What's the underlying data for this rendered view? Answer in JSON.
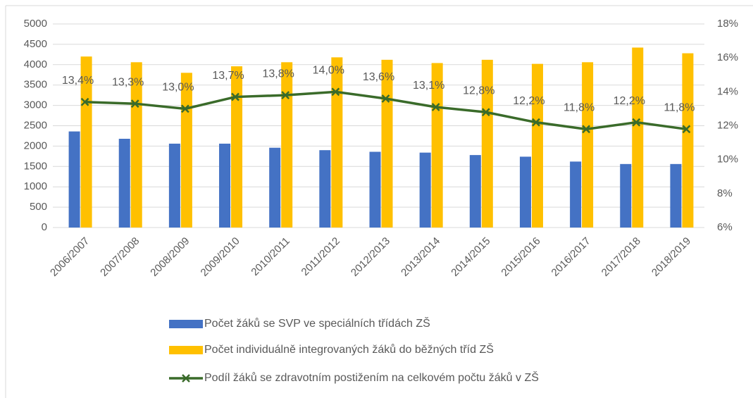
{
  "chart_data": {
    "type": "bar",
    "categories": [
      "2006/2007",
      "2007/2008",
      "2008/2009",
      "2009/2010",
      "2010/2011",
      "2011/2012",
      "2012/2013",
      "2013/2014",
      "2014/2015",
      "2015/2016",
      "2016/2017",
      "2017/2018",
      "2018/2019"
    ],
    "series": [
      {
        "name": "Počet žáků se SVP ve speciálních třídách ZŠ",
        "color": "#4472c4",
        "type": "bar",
        "values": [
          2360,
          2180,
          2060,
          2060,
          1960,
          1900,
          1860,
          1840,
          1780,
          1740,
          1620,
          1560,
          1560
        ]
      },
      {
        "name": "Počet individuálně integrovaných žáků do běžných tříd ZŠ",
        "color": "#ffc000",
        "type": "bar",
        "values": [
          4200,
          4060,
          3800,
          3960,
          4060,
          4180,
          4120,
          4040,
          4120,
          4020,
          4060,
          4420,
          4280
        ]
      },
      {
        "name": "Podíl žáků se zdravotním postižením na celkovém počtu žáků v ZŠ",
        "color": "#3a6b2a",
        "type": "line",
        "axis": "y2",
        "values": [
          13.4,
          13.3,
          13.0,
          13.7,
          13.8,
          14.0,
          13.6,
          13.1,
          12.8,
          12.2,
          11.8,
          12.2,
          11.8
        ],
        "value_labels": [
          "13,4%",
          "13,3%",
          "13,0%",
          "13,7%",
          "13,8%",
          "14,0%",
          "13,6%",
          "13,1%",
          "12,8%",
          "12,2%",
          "11,8%",
          "12,2%",
          "11,8%"
        ]
      }
    ],
    "ylim": [
      0,
      5000
    ],
    "yticks": [
      0,
      500,
      1000,
      1500,
      2000,
      2500,
      3000,
      3500,
      4000,
      4500,
      5000
    ],
    "y2lim": [
      6,
      18
    ],
    "y2ticks": [
      {
        "value": 6,
        "label": "6%"
      },
      {
        "value": 8,
        "label": "8%"
      },
      {
        "value": 10,
        "label": "10%"
      },
      {
        "value": 12,
        "label": "12%"
      },
      {
        "value": 14,
        "label": "14%"
      },
      {
        "value": 16,
        "label": "16%"
      },
      {
        "value": 18,
        "label": "18%"
      }
    ],
    "grid": true
  }
}
